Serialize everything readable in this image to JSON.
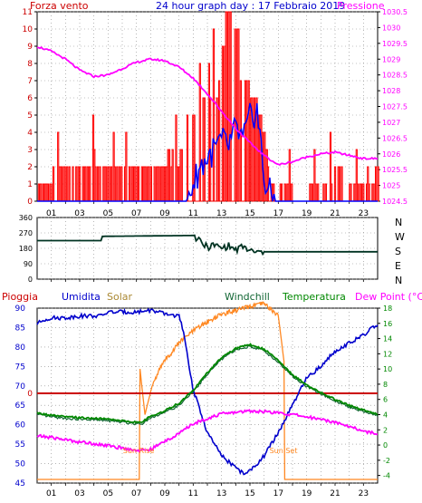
{
  "panel1": {
    "title": "24 hour graph day : 17 Febbraio 2019",
    "left_label": "Forza vento",
    "right_label": "Pressione",
    "left_ticks": [
      "11",
      "10",
      "9",
      "8",
      "7",
      "6",
      "5",
      "4",
      "3",
      "2",
      "1",
      "0"
    ],
    "right_ticks": [
      "1030.5",
      "1030",
      "1029.5",
      "1029",
      "1028.5",
      "1028",
      "1027.5",
      "1027",
      "1026.5",
      "1026",
      "1025.5",
      "1025",
      "1024.5"
    ],
    "hour_labels": [
      "01",
      "03",
      "05",
      "07",
      "09",
      "11",
      "13",
      "15",
      "17",
      "19",
      "21",
      "23"
    ]
  },
  "panel2": {
    "left_ticks": [
      "360",
      "270",
      "180",
      "90",
      "0"
    ],
    "compass": [
      "N",
      "W",
      "S",
      "E",
      "N"
    ]
  },
  "panel3": {
    "labels": {
      "pioggia": "Pioggia",
      "umidita": "Umidita",
      "solar": "Solar",
      "windchill": "Windchill",
      "temperatura": "Temperatura",
      "dewpoint": "Dew Point (°C)"
    },
    "left_ticks": [
      "90",
      "85",
      "80",
      "75",
      "70",
      "65",
      "60",
      "55",
      "50",
      "45"
    ],
    "rain_tick": "0",
    "right_ticks": [
      "18",
      "16",
      "14",
      "12",
      "10",
      "8",
      "6",
      "4",
      "2",
      "0",
      "-2",
      "-4"
    ],
    "hour_labels": [
      "01",
      "03",
      "05",
      "07",
      "09",
      "11",
      "13",
      "15",
      "17",
      "19",
      "21",
      "23"
    ],
    "sun_rise": "Sun Rise",
    "sun_set": "Sun Set"
  },
  "colors": {
    "wind": "#ff0000",
    "gust": "#0000ff",
    "pressure": "#ff00ff",
    "direction": "#003322",
    "humidity": "#0000cc",
    "solar": "#ff8822",
    "temperature": "#008800",
    "windchill": "#116633",
    "dewpoint": "#ff00ff",
    "rain": "#cc0000",
    "left_axis": "#cc0000",
    "right_axis_p3": "#008800"
  },
  "chart_data": [
    {
      "type": "line",
      "x_unit": "hour",
      "xlim": [
        0,
        24
      ],
      "series": [
        {
          "name": "Forza vento",
          "axis": "left",
          "x": [
            0,
            2,
            4,
            6,
            8,
            10,
            10.8,
            11.2,
            12,
            12.6,
            13,
            13.4,
            13.8,
            14.2,
            14.6,
            15,
            15.5,
            16,
            16.3,
            17,
            19,
            20.6,
            21,
            22,
            23,
            24
          ],
          "y": [
            1,
            1.5,
            1.8,
            1.5,
            1.5,
            2,
            4,
            5.5,
            5.5,
            5.5,
            7,
            10,
            8,
            7,
            6,
            5,
            4,
            3,
            1,
            0.5,
            0.3,
            1,
            1.8,
            1,
            1,
            1.5
          ]
        },
        {
          "name": "Pressione",
          "axis": "right",
          "x": [
            0,
            1,
            2,
            3,
            4,
            5,
            6,
            7,
            8,
            9,
            10,
            11,
            12,
            13,
            14,
            15,
            16,
            17,
            18,
            19,
            20,
            21,
            22,
            23,
            24
          ],
          "y": [
            1029.4,
            1029.25,
            1029.0,
            1028.65,
            1028.45,
            1028.5,
            1028.7,
            1028.9,
            1029.0,
            1028.95,
            1028.75,
            1028.4,
            1027.9,
            1027.35,
            1026.8,
            1026.35,
            1025.95,
            1025.65,
            1025.75,
            1025.9,
            1026.0,
            1026.05,
            1025.95,
            1025.85,
            1025.85
          ]
        },
        {
          "name": "",
          "axis": "left",
          "x": [
            0,
            10.5,
            11,
            11.5,
            12,
            12.5,
            13,
            13.5,
            14,
            14.5,
            15,
            15.5,
            15.8,
            16,
            16.5,
            17,
            24
          ],
          "y": [
            0,
            0,
            1,
            2,
            2.5,
            3,
            3.5,
            3.2,
            4.2,
            3.5,
            4.8,
            5.3,
            3,
            1.2,
            0.3,
            0,
            0
          ]
        }
      ],
      "left_ylim": [
        0,
        11
      ],
      "right_ylim": [
        1024.5,
        1030.5
      ],
      "left_ylabel": "Forza vento",
      "right_ylabel": "Pressione",
      "title": "24 hour graph day : 17 Febbraio 2019"
    },
    {
      "type": "line",
      "x_unit": "hour",
      "xlim": [
        0,
        24
      ],
      "ylim": [
        0,
        360
      ],
      "series": [
        {
          "name": "",
          "x": [
            0,
            4.5,
            4.6,
            11,
            11.3,
            12,
            12.5,
            13,
            13.5,
            14,
            14.5,
            15,
            15.5,
            16,
            24
          ],
          "y": [
            225,
            225,
            250,
            255,
            230,
            185,
            200,
            180,
            195,
            170,
            190,
            165,
            155,
            160,
            160
          ]
        }
      ]
    },
    {
      "type": "line",
      "x_unit": "hour",
      "xlim": [
        0,
        24
      ],
      "series": [
        {
          "name": "Umidita",
          "axis": "left",
          "x": [
            0,
            0.5,
            1,
            2,
            3,
            4,
            4.5,
            5,
            6,
            7,
            8,
            9,
            10,
            10.3,
            11,
            12,
            13,
            14,
            14.5,
            15,
            15.5,
            16,
            17,
            18,
            19,
            20,
            21,
            22,
            23,
            24
          ],
          "y": [
            86,
            87,
            87.5,
            87.5,
            88,
            88,
            88,
            89,
            89,
            89,
            89.5,
            88.5,
            88,
            84,
            69,
            58,
            52,
            49,
            47.5,
            48,
            50,
            52,
            58,
            65,
            72,
            75,
            79,
            81,
            83,
            86
          ]
        },
        {
          "name": "Solar",
          "axis": "none",
          "x": [
            0,
            7.2,
            7.25,
            7.6,
            8,
            8.5,
            9,
            9.5,
            10,
            11,
            12,
            13,
            14,
            15,
            16,
            17,
            17.4,
            17.45,
            24
          ],
          "y": [
            0,
            0,
            10,
            4,
            7,
            9.5,
            11.2,
            12.2,
            13.5,
            15,
            16.2,
            17.2,
            17.7,
            18.2,
            18.6,
            17,
            11,
            0,
            0
          ]
        },
        {
          "name": "Temperatura",
          "axis": "right",
          "x": [
            0,
            1,
            2,
            3,
            4,
            5,
            6,
            7,
            7.5,
            8,
            9,
            10,
            11,
            12,
            13,
            14,
            15,
            16,
            16.5,
            17,
            18,
            19,
            20,
            21,
            22,
            23,
            24
          ],
          "y": [
            4.2,
            3.9,
            3.7,
            3.6,
            3.5,
            3.4,
            3.2,
            3.0,
            3.1,
            3.8,
            4.5,
            5.5,
            7.2,
            9.5,
            11.5,
            12.7,
            13.2,
            12.6,
            11.9,
            11.2,
            9.2,
            7.9,
            6.9,
            6.0,
            5.2,
            4.6,
            4.1
          ]
        },
        {
          "name": "Windchill",
          "axis": "right",
          "x": [
            0,
            1,
            2,
            3,
            4,
            5,
            6,
            7,
            7.5,
            8,
            9,
            10,
            11,
            12,
            13,
            14,
            15,
            16,
            16.5,
            17,
            18,
            19,
            20,
            21,
            22,
            23,
            24
          ],
          "y": [
            4.0,
            3.7,
            3.5,
            3.4,
            3.3,
            3.2,
            3.0,
            2.8,
            2.9,
            3.6,
            4.3,
            5.2,
            7.0,
            9.3,
            11.3,
            12.5,
            13.0,
            12.4,
            11.6,
            10.9,
            9.0,
            7.7,
            6.7,
            5.8,
            5.0,
            4.4,
            3.9
          ]
        },
        {
          "name": "Dew Point (°C)",
          "axis": "right",
          "x": [
            0,
            1,
            2,
            3,
            4,
            5,
            6,
            7,
            8,
            9,
            10,
            11,
            12,
            13,
            14,
            15,
            16,
            17,
            18,
            19,
            20,
            21,
            22,
            23,
            24
          ],
          "y": [
            1.2,
            1.0,
            0.7,
            0.4,
            0.2,
            -0.1,
            -0.4,
            -0.7,
            -0.6,
            0.5,
            1.5,
            2.8,
            3.5,
            4.1,
            4.3,
            4.5,
            4.4,
            4.2,
            4.0,
            3.7,
            3.4,
            3.0,
            2.5,
            1.8,
            1.5
          ]
        },
        {
          "name": "Pioggia",
          "axis": "rain",
          "x": [
            0,
            24
          ],
          "y": [
            0,
            0
          ]
        }
      ],
      "left_ylim": [
        45,
        90
      ],
      "right_ylim": [
        -5,
        18
      ],
      "sun_rise_hour": 7.2,
      "sun_set_hour": 17.4
    }
  ]
}
